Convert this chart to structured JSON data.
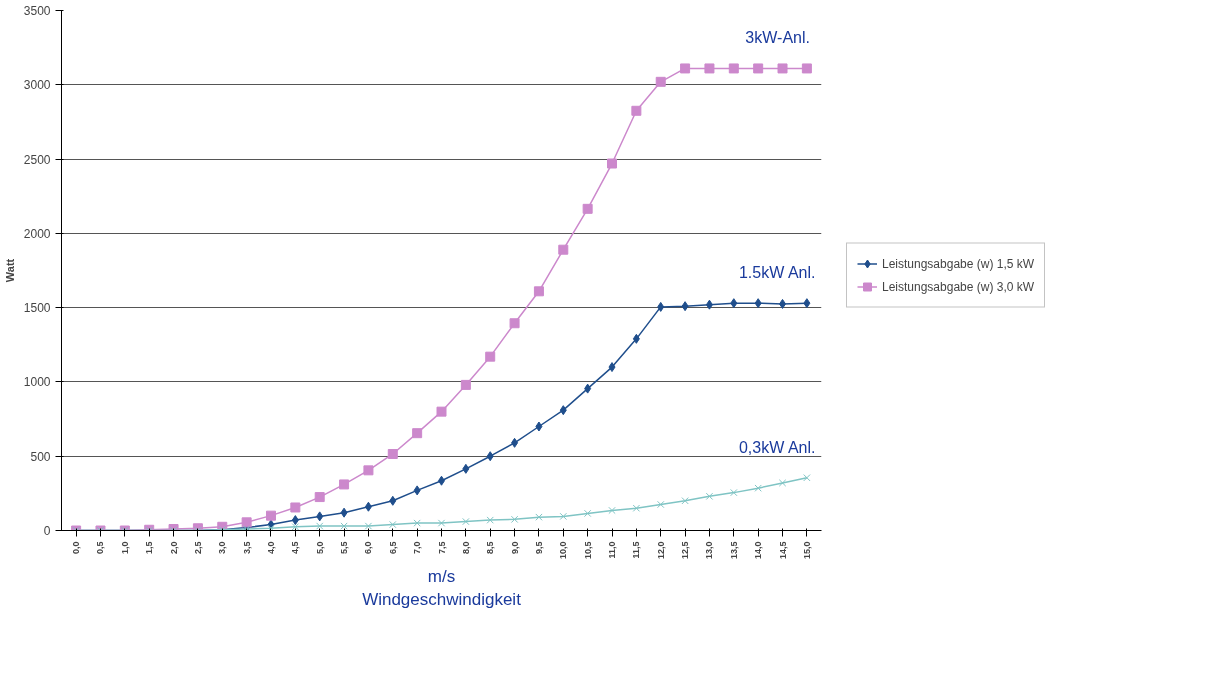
{
  "chart_data": {
    "type": "line",
    "xlabel": "m/s\nWindgeschwindigkeit",
    "ylabel": "Watt",
    "categories": [
      "0,0",
      "0,5",
      "1,0",
      "1,5",
      "2,0",
      "2,5",
      "3,0",
      "3,5",
      "4,0",
      "4,5",
      "5,0",
      "5,5",
      "6,0",
      "6,5",
      "7,0",
      "7,5",
      "8,0",
      "8,5",
      "9,0",
      "9,5",
      "10,0",
      "10,5",
      "11,0",
      "11,5",
      "12,0",
      "12,5",
      "13,0",
      "13,5",
      "14,0",
      "14,5",
      "15,0"
    ],
    "series": [
      {
        "name": "Leistungsabgabe (w) 1,5 kW",
        "color": "#1f4e8c",
        "marker": "diamond",
        "values": [
          0,
          0,
          0,
          0,
          0,
          0,
          5,
          20,
          40,
          70,
          95,
          120,
          160,
          200,
          270,
          335,
          415,
          500,
          590,
          700,
          810,
          955,
          1100,
          1290,
          1505,
          1510,
          1520,
          1530,
          1530,
          1525,
          1530
        ]
      },
      {
        "name": "Leistungsabgabe (w) 3,0 kW",
        "color": "#cc88cc",
        "marker": "square",
        "values": [
          0,
          0,
          0,
          5,
          10,
          15,
          25,
          55,
          100,
          155,
          225,
          310,
          405,
          515,
          655,
          800,
          980,
          1170,
          1395,
          1610,
          1890,
          2165,
          2470,
          2825,
          3020,
          3110,
          3110,
          3110,
          3110,
          3110,
          3110
        ]
      },
      {
        "color": "#7fc4c4",
        "marker": "cross",
        "values": [
          0,
          0,
          0,
          0,
          0,
          0,
          5,
          10,
          15,
          25,
          30,
          30,
          30,
          40,
          50,
          50,
          60,
          70,
          75,
          90,
          95,
          115,
          135,
          150,
          175,
          200,
          230,
          255,
          285,
          320,
          355
        ]
      }
    ],
    "annotations": [
      "1.5kW Anl.",
      "3kW-Anl.",
      "0,3kW Anl."
    ],
    "ylim": [
      0,
      3500
    ],
    "yticks": [
      0,
      500,
      1000,
      1500,
      2000,
      2500,
      3000,
      3500
    ],
    "grid": "y",
    "legend": "right"
  }
}
